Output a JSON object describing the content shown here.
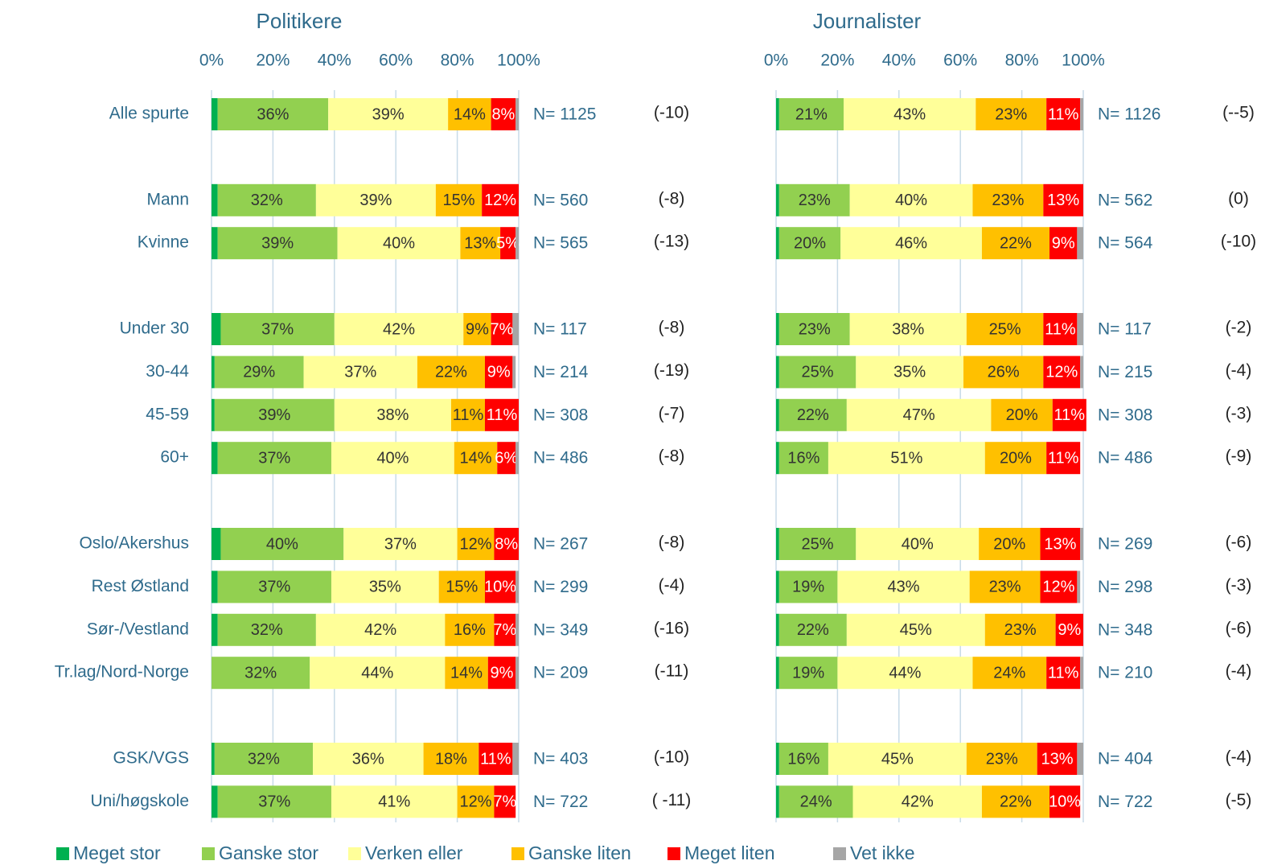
{
  "chart_data": [
    {
      "type": "stacked-bar-horizontal",
      "title": "Politikere",
      "categories": [
        "Alle spurte",
        null,
        "Mann",
        "Kvinne",
        null,
        "Under 30",
        "30-44",
        "45-59",
        "60+",
        null,
        "Oslo/Akershus",
        "Rest Østland",
        "Sør-/Vestland",
        "Tr.lag/Nord-Norge",
        null,
        "GSK/VGS",
        "Uni/høgskole"
      ],
      "xlim": [
        0,
        100
      ],
      "xticks": [
        {
          "value": 0,
          "label": "0%"
        },
        {
          "value": 20,
          "label": "20%"
        },
        {
          "value": 40,
          "label": "40%"
        },
        {
          "value": 60,
          "label": "60%"
        },
        {
          "value": 80,
          "label": "80%"
        },
        {
          "value": 100,
          "label": "100%"
        }
      ],
      "grid": true,
      "legend": "bottom",
      "n_labels": [
        "N= 1125",
        null,
        "N= 560",
        "N= 565",
        null,
        "N= 117",
        "N= 214",
        "N= 308",
        "N= 486",
        null,
        "N= 267",
        "N= 299",
        "N= 349",
        "N= 209",
        null,
        "N= 403",
        "N= 722"
      ],
      "changes": [
        "(-10)",
        null,
        "(-8)",
        "(-13)",
        null,
        "(-8)",
        "(-19)",
        "(-7)",
        "(-8)",
        null,
        "(-8)",
        "(-4)",
        "(-16)",
        "(-11)",
        null,
        "(-10)",
        "( -11)"
      ],
      "series": [
        {
          "name": "Meget stor",
          "color": "#00b050",
          "values": [
            2,
            null,
            2,
            2,
            null,
            3,
            1,
            1,
            2,
            null,
            3,
            2,
            2,
            0,
            null,
            1,
            2
          ]
        },
        {
          "name": "Ganske stor",
          "color": "#92d050",
          "values": [
            36,
            null,
            32,
            39,
            null,
            37,
            29,
            39,
            37,
            null,
            40,
            37,
            32,
            32,
            null,
            32,
            37
          ],
          "value_labels": [
            "36%",
            null,
            "32%",
            "39%",
            null,
            "37%",
            "29%",
            "39%",
            "37%",
            null,
            "40%",
            "37%",
            "32%",
            "32%",
            null,
            "32%",
            "37%"
          ]
        },
        {
          "name": "Verken eller",
          "color": "#ffff99",
          "values": [
            39,
            null,
            39,
            40,
            null,
            42,
            37,
            38,
            40,
            null,
            37,
            35,
            42,
            44,
            null,
            36,
            41
          ],
          "value_labels": [
            "39%",
            null,
            "39%",
            "40%",
            null,
            "42%",
            "37%",
            "38%",
            "40%",
            null,
            "37%",
            "35%",
            "42%",
            "44%",
            null,
            "36%",
            "41%"
          ]
        },
        {
          "name": "Ganske liten",
          "color": "#ffc000",
          "values": [
            14,
            null,
            15,
            13,
            null,
            9,
            22,
            11,
            14,
            null,
            12,
            15,
            16,
            14,
            null,
            18,
            12
          ],
          "value_labels": [
            "14%",
            null,
            "15%",
            "13%",
            null,
            "9%",
            "22%",
            "11%",
            "14%",
            null,
            "12%",
            "15%",
            "16%",
            "14%",
            null,
            "18%",
            "12%"
          ]
        },
        {
          "name": "Meget liten",
          "color": "#ff0000",
          "values": [
            8,
            null,
            12,
            5,
            null,
            7,
            9,
            11,
            6,
            null,
            8,
            10,
            7,
            9,
            null,
            11,
            7
          ],
          "value_labels": [
            "8%",
            null,
            "12%",
            "5%",
            null,
            "7%",
            "9%",
            "11%",
            "6%",
            null,
            "8%",
            "10%",
            "7%",
            "9%",
            null,
            "11%",
            "7%"
          ]
        },
        {
          "name": "Vet ikke",
          "color": "#a6a6a6",
          "values": [
            1,
            null,
            0,
            1,
            null,
            2,
            1,
            0,
            1,
            null,
            0,
            1,
            1,
            1,
            null,
            2,
            0
          ]
        }
      ]
    },
    {
      "type": "stacked-bar-horizontal",
      "title": "Journalister",
      "xlim": [
        0,
        100
      ],
      "xticks": [
        {
          "value": 0,
          "label": "0%"
        },
        {
          "value": 20,
          "label": "20%"
        },
        {
          "value": 40,
          "label": "40%"
        },
        {
          "value": 60,
          "label": "60%"
        },
        {
          "value": 80,
          "label": "80%"
        },
        {
          "value": 100,
          "label": "100%"
        }
      ],
      "grid": true,
      "n_labels": [
        "N= 1126",
        null,
        "N= 562",
        "N= 564",
        null,
        "N= 117",
        "N= 215",
        "N= 308",
        "N= 486",
        null,
        "N= 269",
        "N= 298",
        "N= 348",
        "N= 210",
        null,
        "N= 404",
        "N= 722"
      ],
      "changes": [
        "(--5)",
        null,
        "(0)",
        "(-10)",
        null,
        "(-2)",
        "(-4)",
        "(-3)",
        "(-9)",
        null,
        "(-6)",
        "(-3)",
        "(-6)",
        "(-4)",
        null,
        "(-4)",
        "(-5)"
      ],
      "series": [
        {
          "color": "#00b050",
          "values": [
            1,
            null,
            1,
            1,
            null,
            1,
            1,
            1,
            1,
            null,
            1,
            1,
            1,
            1,
            null,
            1,
            1
          ]
        },
        {
          "color": "#92d050",
          "values": [
            21,
            null,
            23,
            20,
            null,
            23,
            25,
            22,
            16,
            null,
            25,
            19,
            22,
            19,
            null,
            16,
            24
          ],
          "value_labels": [
            "21%",
            null,
            "23%",
            "20%",
            null,
            "23%",
            "25%",
            "22%",
            "16%",
            null,
            "25%",
            "19%",
            "22%",
            "19%",
            null,
            "16%",
            "24%"
          ]
        },
        {
          "color": "#ffff99",
          "values": [
            43,
            null,
            40,
            46,
            null,
            38,
            35,
            47,
            51,
            null,
            40,
            43,
            45,
            44,
            null,
            45,
            42
          ],
          "value_labels": [
            "43%",
            null,
            "40%",
            "46%",
            null,
            "38%",
            "35%",
            "47%",
            "51%",
            null,
            "40%",
            "43%",
            "45%",
            "44%",
            null,
            "45%",
            "42%"
          ]
        },
        {
          "color": "#ffc000",
          "values": [
            23,
            null,
            23,
            22,
            null,
            25,
            26,
            20,
            20,
            null,
            20,
            23,
            23,
            24,
            null,
            23,
            22
          ],
          "value_labels": [
            "23%",
            null,
            "23%",
            "22%",
            null,
            "25%",
            "26%",
            "20%",
            "20%",
            null,
            "20%",
            "23%",
            "23%",
            "24%",
            null,
            "23%",
            "22%"
          ]
        },
        {
          "color": "#ff0000",
          "values": [
            11,
            null,
            13,
            9,
            null,
            11,
            12,
            11,
            11,
            null,
            13,
            12,
            9,
            11,
            null,
            13,
            10
          ],
          "value_labels": [
            "11%",
            null,
            "13%",
            "9%",
            null,
            "11%",
            "12%",
            "11%",
            "11%",
            null,
            "13%",
            "12%",
            "9%",
            "11%",
            null,
            "13%",
            "10%"
          ]
        },
        {
          "color": "#a6a6a6",
          "values": [
            1,
            null,
            0,
            2,
            null,
            2,
            1,
            0,
            0,
            null,
            1,
            1,
            0,
            1,
            null,
            2,
            0
          ]
        }
      ]
    }
  ]
}
